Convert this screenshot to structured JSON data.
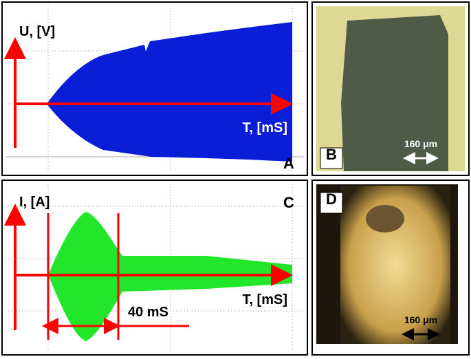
{
  "panels": [
    {
      "letter": "A",
      "y_label": "U, [V]",
      "x_label": "T, [mS]"
    },
    {
      "letter": "B",
      "scale_label": "160 μm"
    },
    {
      "letter": "C",
      "y_label": "I, [A]",
      "x_label": "T, [mS]",
      "interval_label": "40 mS"
    },
    {
      "letter": "D",
      "scale_label": "160 μm"
    }
  ]
}
